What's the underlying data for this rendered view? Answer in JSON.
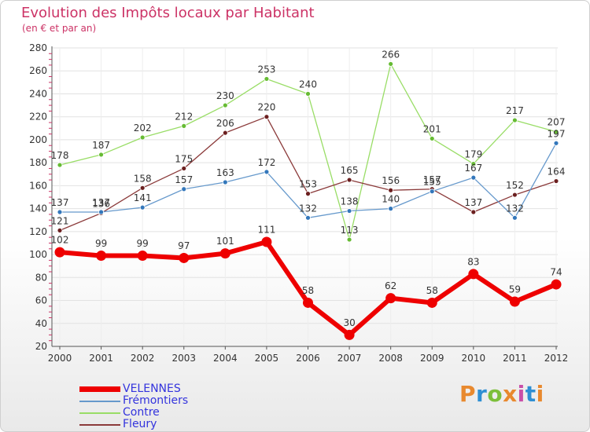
{
  "header": {
    "title": "Evolution des Impôts locaux par Habitant",
    "subtitle": "(en € et par an)"
  },
  "brand": {
    "text": "Proxiti",
    "colors": [
      "#e8892e",
      "#2e8fd3",
      "#7cbf3a",
      "#e8892e",
      "#c94fa8",
      "#2e8fd3",
      "#e8892e"
    ]
  },
  "chart_data": {
    "type": "line",
    "title": "Evolution des Impôts locaux par Habitant",
    "subtitle": "(en € et par an)",
    "xlabel": "",
    "ylabel": "",
    "x": [
      "2000",
      "2001",
      "2002",
      "2003",
      "2004",
      "2005",
      "2006",
      "2007",
      "2008",
      "2009",
      "2010",
      "2011",
      "2012"
    ],
    "ylim": [
      20,
      280
    ],
    "yticks": [
      20,
      40,
      60,
      80,
      100,
      120,
      140,
      160,
      180,
      200,
      220,
      240,
      260,
      280
    ],
    "grid": true,
    "legend_position": "bottom-left",
    "series": [
      {
        "name": "Contre",
        "color": "#99dd66",
        "marker": "#66bb33",
        "width": 1.3,
        "radius": 3,
        "values": [
          178,
          187,
          202,
          212,
          230,
          253,
          240,
          113,
          266,
          201,
          179,
          217,
          207
        ]
      },
      {
        "name": "Fleury",
        "color": "#8b3a3a",
        "marker": "#6b1f1f",
        "width": 1.3,
        "radius": 3,
        "values": [
          121,
          136,
          158,
          175,
          206,
          220,
          153,
          165,
          156,
          157,
          137,
          152,
          164
        ]
      },
      {
        "name": "Frémontiers",
        "color": "#6699cc",
        "marker": "#3377bb",
        "width": 1.3,
        "radius": 3,
        "values": [
          137,
          137,
          141,
          157,
          163,
          172,
          132,
          138,
          140,
          155,
          167,
          132,
          197
        ]
      },
      {
        "name": "VELENNES",
        "color": "#ee0000",
        "marker": "#ee0000",
        "width": 6,
        "radius": 6.5,
        "values": [
          102,
          99,
          99,
          97,
          101,
          111,
          58,
          30,
          62,
          58,
          83,
          59,
          74
        ]
      }
    ],
    "legend": [
      "VELENNES",
      "Frémontiers",
      "Contre",
      "Fleury"
    ]
  }
}
